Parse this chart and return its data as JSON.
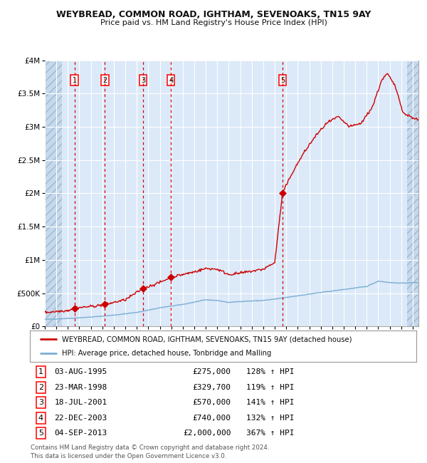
{
  "title": "WEYBREAD, COMMON ROAD, IGHTHAM, SEVENOAKS, TN15 9AY",
  "subtitle": "Price paid vs. HM Land Registry's House Price Index (HPI)",
  "transactions": [
    {
      "num": 1,
      "date": "03-AUG-1995",
      "year": 1995.58,
      "price": 275000,
      "hpi_pct": "128% ↑ HPI"
    },
    {
      "num": 2,
      "date": "23-MAR-1998",
      "year": 1998.22,
      "price": 329700,
      "hpi_pct": "119% ↑ HPI"
    },
    {
      "num": 3,
      "date": "18-JUL-2001",
      "year": 2001.54,
      "price": 570000,
      "hpi_pct": "141% ↑ HPI"
    },
    {
      "num": 4,
      "date": "22-DEC-2003",
      "year": 2003.97,
      "price": 740000,
      "hpi_pct": "132% ↑ HPI"
    },
    {
      "num": 5,
      "date": "04-SEP-2013",
      "year": 2013.67,
      "price": 2000000,
      "hpi_pct": "367% ↑ HPI"
    }
  ],
  "hpi_color": "#7bafd4",
  "price_color": "#cc0000",
  "marker_color": "#cc0000",
  "dashed_line_color": "#cc0000",
  "background_color": "#dce9f8",
  "grid_color": "#ffffff",
  "ylim": [
    0,
    4000000
  ],
  "xlim_start": 1993.0,
  "xlim_end": 2025.5,
  "hatch_left_end": 1994.5,
  "hatch_right_start": 2024.5,
  "footer": "Contains HM Land Registry data © Crown copyright and database right 2024.\nThis data is licensed under the Open Government Licence v3.0.",
  "legend_line1": "WEYBREAD, COMMON ROAD, IGHTHAM, SEVENOAKS, TN15 9AY (detached house)",
  "legend_line2": "HPI: Average price, detached house, Tonbridge and Malling",
  "yticks": [
    0,
    500000,
    1000000,
    1500000,
    2000000,
    2500000,
    3000000,
    3500000,
    4000000
  ],
  "ytick_labels": [
    "£0",
    "£500K",
    "£1M",
    "£1.5M",
    "£2M",
    "£2.5M",
    "£3M",
    "£3.5M",
    "£4M"
  ]
}
